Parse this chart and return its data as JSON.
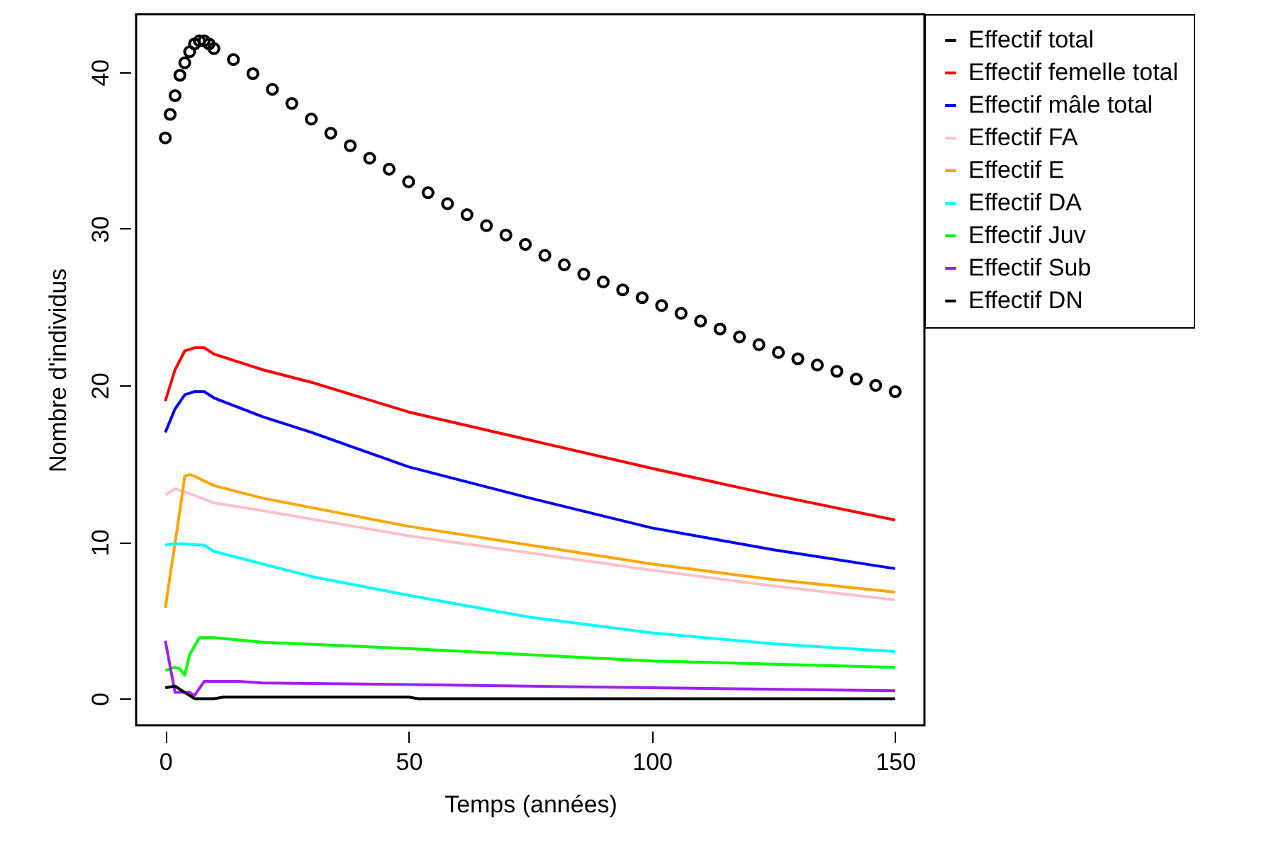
{
  "chart_data": {
    "type": "line",
    "xlabel": "Temps (années)",
    "ylabel": "Nombre d'individus",
    "xlim": [
      -6,
      156
    ],
    "ylim": [
      -1.7,
      43.7
    ],
    "xticks": [
      0,
      50,
      100,
      150
    ],
    "yticks": [
      0,
      10,
      20,
      30,
      40
    ],
    "grid": false,
    "legend": "right",
    "line_style": "solid",
    "series": [
      {
        "name": "Effectif total",
        "type": "scatter",
        "marker": "circle",
        "color": "#000000",
        "x": [
          0,
          1,
          2,
          3,
          4,
          5,
          6,
          7,
          8,
          9,
          10,
          14,
          18,
          22,
          26,
          30,
          34,
          38,
          42,
          46,
          50,
          54,
          58,
          62,
          66,
          70,
          74,
          78,
          82,
          86,
          90,
          94,
          98,
          102,
          106,
          110,
          114,
          118,
          122,
          126,
          130,
          134,
          138,
          142,
          146,
          150
        ],
        "values": [
          35.8,
          37.3,
          38.5,
          39.8,
          40.6,
          41.3,
          41.8,
          42.0,
          42.0,
          41.8,
          41.5,
          40.8,
          39.9,
          38.9,
          38.0,
          37.0,
          36.1,
          35.3,
          34.5,
          33.8,
          33.0,
          32.3,
          31.6,
          30.9,
          30.2,
          29.6,
          29.0,
          28.3,
          27.7,
          27.1,
          26.6,
          26.1,
          25.6,
          25.1,
          24.6,
          24.1,
          23.6,
          23.1,
          22.6,
          22.1,
          21.7,
          21.3,
          20.9,
          20.4,
          20.0,
          19.6
        ]
      },
      {
        "name": "Effectif femelle total",
        "color": "#ff0000",
        "x": [
          0,
          2,
          4,
          6,
          8,
          10,
          20,
          30,
          50,
          75,
          100,
          125,
          150
        ],
        "values": [
          19.0,
          21.0,
          22.2,
          22.4,
          22.4,
          22.0,
          21.0,
          20.2,
          18.3,
          16.5,
          14.7,
          13.0,
          11.4
        ]
      },
      {
        "name": "Effectif mâle  total",
        "color": "#0000ff",
        "x": [
          0,
          2,
          4,
          6,
          8,
          10,
          20,
          30,
          50,
          75,
          100,
          125,
          150
        ],
        "values": [
          17.0,
          18.5,
          19.4,
          19.6,
          19.6,
          19.2,
          18.0,
          17.0,
          14.8,
          12.8,
          10.9,
          9.5,
          8.3
        ]
      },
      {
        "name": "Effectif FA",
        "color": "#ffc0cb",
        "x": [
          0,
          2,
          4,
          10,
          20,
          50,
          75,
          100,
          125,
          150
        ],
        "values": [
          13.0,
          13.4,
          13.2,
          12.5,
          12.0,
          10.4,
          9.3,
          8.2,
          7.2,
          6.3
        ]
      },
      {
        "name": "Effectif E",
        "color": "#ffa500",
        "x": [
          0,
          3,
          4,
          5,
          6,
          10,
          20,
          30,
          50,
          75,
          100,
          125,
          150
        ],
        "values": [
          5.8,
          12.0,
          14.2,
          14.3,
          14.2,
          13.6,
          12.8,
          12.2,
          11.0,
          9.8,
          8.6,
          7.6,
          6.8
        ]
      },
      {
        "name": "Effectif DA",
        "color": "#00ffff",
        "x": [
          0,
          2,
          8,
          10,
          20,
          30,
          50,
          75,
          100,
          125,
          150
        ],
        "values": [
          9.8,
          9.9,
          9.8,
          9.4,
          8.6,
          7.8,
          6.6,
          5.2,
          4.2,
          3.5,
          3.0
        ]
      },
      {
        "name": "Effectif Juv",
        "color": "#00ff00",
        "x": [
          0,
          2,
          3,
          4,
          5,
          7,
          10,
          20,
          50,
          75,
          100,
          125,
          150
        ],
        "values": [
          1.8,
          2.0,
          1.9,
          1.5,
          2.8,
          3.9,
          3.9,
          3.6,
          3.2,
          2.8,
          2.4,
          2.2,
          2.0
        ]
      },
      {
        "name": "Effectif Sub",
        "color": "#a020f0",
        "x": [
          0,
          2,
          5,
          6,
          8,
          15,
          20,
          50,
          100,
          150
        ],
        "values": [
          3.7,
          0.4,
          0.4,
          0.2,
          1.1,
          1.1,
          1.0,
          0.9,
          0.7,
          0.5
        ]
      },
      {
        "name": "Effectif DN",
        "color": "#000000",
        "x": [
          0,
          2,
          4,
          6,
          10,
          12,
          50,
          52,
          150
        ],
        "values": [
          0.7,
          0.8,
          0.4,
          0.0,
          0.0,
          0.1,
          0.1,
          0.0,
          0.0
        ]
      }
    ]
  }
}
